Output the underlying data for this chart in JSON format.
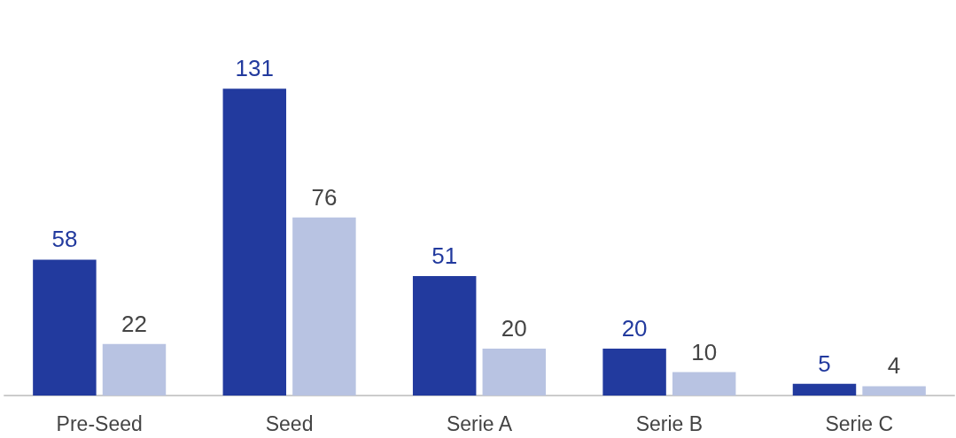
{
  "chart_data": {
    "type": "bar",
    "categories": [
      "Pre-Seed",
      "Seed",
      "Serie A",
      "Serie B",
      "Serie C"
    ],
    "series": [
      {
        "color": "#223a9e",
        "values": [
          58,
          131,
          51,
          20,
          5
        ]
      },
      {
        "color": "#b8c3e2",
        "values": [
          22,
          76,
          20,
          10,
          4
        ]
      }
    ],
    "data_labels": true,
    "grid": false
  }
}
